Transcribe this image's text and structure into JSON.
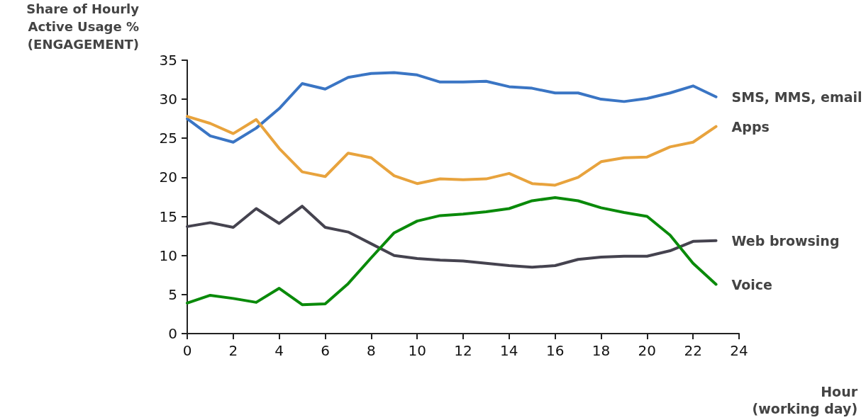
{
  "chart_data": {
    "type": "line",
    "ylabel": "Share of Hourly\nActive Usage %\n(ENGAGEMENT)",
    "xlabel": "Hour\n(working day)",
    "x": [
      0,
      1,
      2,
      3,
      4,
      5,
      6,
      7,
      8,
      9,
      10,
      11,
      12,
      13,
      14,
      15,
      16,
      17,
      18,
      19,
      20,
      21,
      22,
      23
    ],
    "series": [
      {
        "name": "SMS, MMS, email",
        "color": "#3a75c4",
        "values": [
          27.5,
          25.3,
          24.5,
          26.3,
          28.8,
          32.0,
          31.3,
          32.8,
          33.3,
          33.4,
          33.1,
          32.2,
          32.2,
          32.3,
          31.6,
          31.4,
          30.8,
          30.8,
          30.0,
          29.7,
          30.1,
          30.8,
          31.7,
          30.3
        ]
      },
      {
        "name": "Apps",
        "color": "#e8a33d",
        "values": [
          27.8,
          26.9,
          25.6,
          27.4,
          23.7,
          20.7,
          20.1,
          23.1,
          22.5,
          20.2,
          19.2,
          19.8,
          19.7,
          19.8,
          20.5,
          19.2,
          19.0,
          20.0,
          22.0,
          22.5,
          22.6,
          23.9,
          24.5,
          26.5
        ]
      },
      {
        "name": "Web browsing",
        "color": "#45434f",
        "values": [
          13.7,
          14.2,
          13.6,
          16.0,
          14.1,
          16.3,
          13.6,
          13.0,
          11.5,
          10.0,
          9.6,
          9.4,
          9.3,
          9.0,
          8.7,
          8.5,
          8.7,
          9.5,
          9.8,
          9.9,
          9.9,
          10.6,
          11.8,
          11.9
        ]
      },
      {
        "name": "Voice",
        "color": "#0a8a0a",
        "values": [
          3.9,
          4.9,
          4.5,
          4.0,
          5.8,
          3.7,
          3.8,
          6.4,
          9.7,
          12.9,
          14.4,
          15.1,
          15.3,
          15.6,
          16.0,
          17.0,
          17.4,
          17.0,
          16.1,
          15.5,
          15.0,
          12.6,
          9.0,
          6.3
        ]
      }
    ],
    "xlim": [
      0,
      24
    ],
    "xticks": [
      0,
      2,
      4,
      6,
      8,
      10,
      12,
      14,
      16,
      18,
      20,
      22,
      24
    ],
    "ylim": [
      0,
      35
    ],
    "yticks": [
      0,
      5,
      10,
      15,
      20,
      25,
      30,
      35
    ],
    "grid": false,
    "marker": "none",
    "line_style": "solid"
  }
}
